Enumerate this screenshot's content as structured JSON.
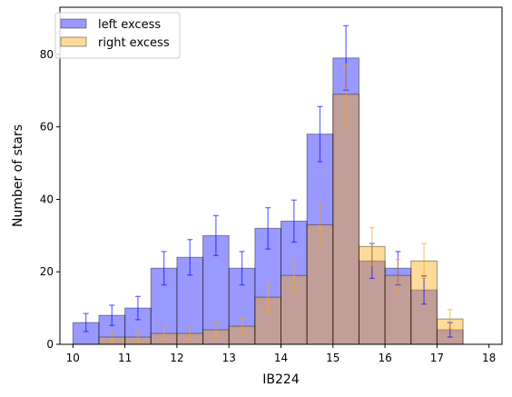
{
  "chart_data": {
    "type": "bar",
    "subtype": "overlapping histogram with error bars",
    "xlabel": "IB224",
    "ylabel": "Number of stars",
    "xlim": [
      9.75,
      18.25
    ],
    "ylim": [
      0,
      93
    ],
    "xticks": [
      10,
      11,
      12,
      13,
      14,
      15,
      16,
      17,
      18
    ],
    "yticks": [
      0,
      20,
      40,
      60,
      80
    ],
    "bin_edges": [
      10.0,
      10.5,
      11.0,
      11.5,
      12.0,
      12.5,
      13.0,
      13.5,
      14.0,
      14.5,
      15.0,
      15.5,
      16.0,
      16.5,
      17.0,
      17.5,
      18.0
    ],
    "legend_position": "top-left",
    "grid": false,
    "series": [
      {
        "name": "left excess",
        "color": "#0000ff",
        "values": [
          6,
          8,
          10,
          21,
          24,
          30,
          21,
          32,
          34,
          58,
          79,
          23,
          21,
          15,
          4,
          0
        ],
        "errors": [
          2.5,
          2.8,
          3.2,
          4.6,
          4.9,
          5.5,
          4.6,
          5.7,
          5.8,
          7.6,
          8.9,
          4.8,
          4.6,
          3.9,
          2.0,
          0
        ]
      },
      {
        "name": "right excess",
        "color": "#ffa500",
        "values": [
          0,
          2,
          2,
          3,
          3,
          4,
          5,
          13,
          19,
          33,
          69,
          27,
          19,
          23,
          7,
          0
        ],
        "errors": [
          0,
          1.4,
          1.4,
          1.7,
          1.7,
          2.0,
          2.2,
          3.6,
          4.4,
          5.7,
          8.3,
          5.2,
          4.4,
          4.8,
          2.6,
          0
        ]
      }
    ]
  }
}
